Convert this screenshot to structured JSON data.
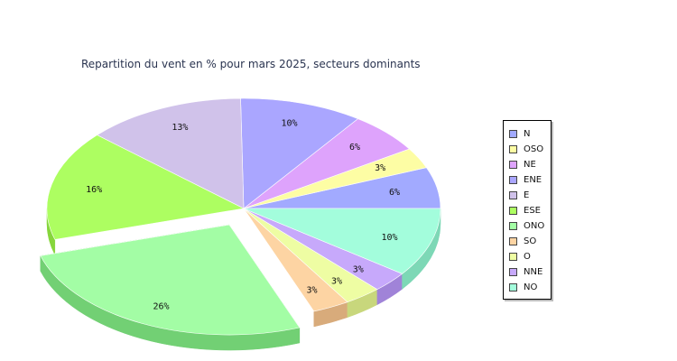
{
  "chart_data": {
    "type": "pie",
    "title": "Repartition du vent en % pour mars 2025, secteurs dominants",
    "slices": [
      {
        "name": "N",
        "value": 6,
        "label": "6%",
        "color": "#a2aaff",
        "side": "#7c84e0"
      },
      {
        "name": "OSO",
        "value": 3,
        "label": "3%",
        "color": "#fdfda4",
        "side": "#d3d37c"
      },
      {
        "name": "NE",
        "value": 6,
        "label": "6%",
        "color": "#dea3fc",
        "side": "#b77fd9"
      },
      {
        "name": "ENE",
        "value": 10,
        "label": "10%",
        "color": "#aaa6ff",
        "side": "#8a84de"
      },
      {
        "name": "E",
        "value": 13,
        "label": "13%",
        "color": "#d0c2ea",
        "side": "#a99bc6"
      },
      {
        "name": "ESE",
        "value": 16,
        "label": "16%",
        "color": "#adfe61",
        "side": "#86d63c"
      },
      {
        "name": "ONO",
        "value": 26,
        "label": "26%",
        "color": "#a3fda5",
        "side": "#72d074",
        "exploded": true
      },
      {
        "name": "SO",
        "value": 3,
        "label": "3%",
        "color": "#fdd4a3",
        "side": "#d8ab7b"
      },
      {
        "name": "O",
        "value": 3,
        "label": "3%",
        "color": "#eefda3",
        "side": "#c8d77c"
      },
      {
        "name": "NNE",
        "value": 3,
        "label": "3%",
        "color": "#c7a9fb",
        "side": "#a083d8"
      },
      {
        "name": "NO",
        "value": 10,
        "label": "10%",
        "color": "#a3fddc",
        "side": "#7dd8b6"
      }
    ],
    "legend_position": "right"
  }
}
